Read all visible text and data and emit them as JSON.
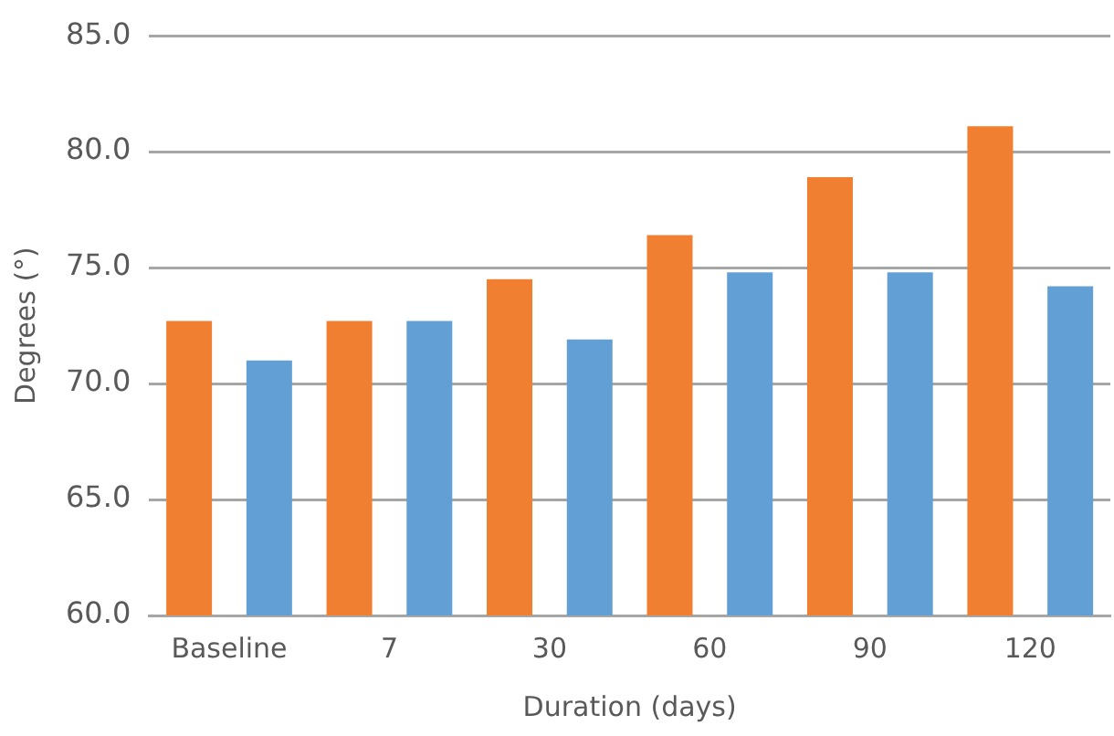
{
  "chart_data": {
    "type": "bar",
    "xlabel": "Duration (days)",
    "ylabel": "Degrees (°)",
    "categories": [
      "Baseline",
      "7",
      "30",
      "60",
      "90",
      "120"
    ],
    "series": [
      {
        "color": "#f07f31",
        "values": [
          72.7,
          72.7,
          74.5,
          76.4,
          78.9,
          81.1
        ]
      },
      {
        "color": "#629fd4",
        "values": [
          71.0,
          72.7,
          71.9,
          74.8,
          74.8,
          74.2
        ]
      }
    ],
    "ylim": [
      60,
      85
    ],
    "yticks": [
      {
        "value": 60,
        "label": "60.0"
      },
      {
        "value": 65,
        "label": "65.0"
      },
      {
        "value": 70,
        "label": "70.0"
      },
      {
        "value": 75,
        "label": "75.0"
      },
      {
        "value": 80,
        "label": "80.0"
      },
      {
        "value": 85,
        "label": "85.0"
      }
    ],
    "grid": "y",
    "legend": false
  }
}
